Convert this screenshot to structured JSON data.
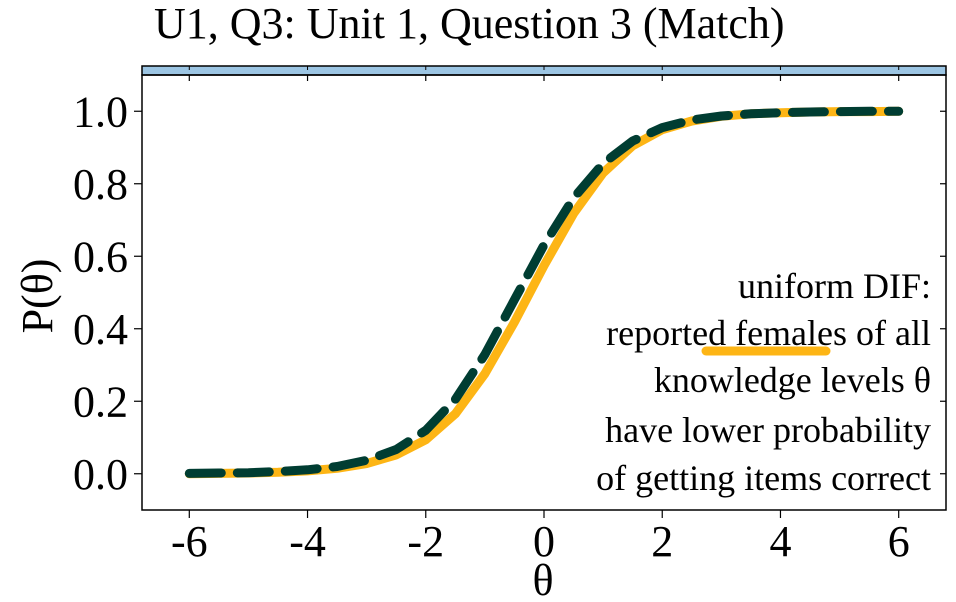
{
  "chart_data": {
    "type": "line",
    "title": "U1, Q3: Unit 1, Question 3 (Match)",
    "xlabel": "θ",
    "ylabel": "P(θ)",
    "xlim": [
      -6.8,
      6.8
    ],
    "ylim": [
      -0.1,
      1.1
    ],
    "x_ticks": [
      -6,
      -4,
      -2,
      0,
      2,
      4,
      6
    ],
    "x_tick_labels": [
      "-6",
      "-4",
      "-2",
      "0",
      "2",
      "4",
      "6"
    ],
    "y_ticks": [
      0.0,
      0.2,
      0.4,
      0.6,
      0.8,
      1.0
    ],
    "y_tick_labels": [
      "0.0",
      "0.2",
      "0.4",
      "0.6",
      "0.8",
      "1.0"
    ],
    "grid": false,
    "x": [
      -6,
      -5.5,
      -5,
      -4.5,
      -4,
      -3.5,
      -3,
      -2.5,
      -2,
      -1.5,
      -1,
      -0.5,
      0,
      0.5,
      1,
      1.5,
      2,
      2.5,
      3,
      3.5,
      4,
      4.5,
      5,
      5.5,
      6
    ],
    "series": [
      {
        "style": "solid",
        "color": "#FDB515",
        "values": [
          0.0,
          0.001,
          0.002,
          0.004,
          0.008,
          0.015,
          0.028,
          0.052,
          0.094,
          0.165,
          0.276,
          0.418,
          0.574,
          0.718,
          0.83,
          0.905,
          0.949,
          0.973,
          0.986,
          0.993,
          0.996,
          0.998,
          0.999,
          0.999,
          1.0
        ]
      },
      {
        "style": "dashed",
        "color": "#003D32",
        "values": [
          0.001,
          0.002,
          0.003,
          0.006,
          0.011,
          0.02,
          0.037,
          0.067,
          0.12,
          0.205,
          0.329,
          0.48,
          0.631,
          0.761,
          0.856,
          0.918,
          0.955,
          0.976,
          0.987,
          0.993,
          0.996,
          0.998,
          0.999,
          1.0,
          1.0
        ]
      }
    ],
    "annotation": {
      "lines": [
        "uniform DIF:",
        "reported females of all",
        "knowledge levels θ",
        "have lower probability",
        "of getting items correct"
      ],
      "underlined_word": "females",
      "underline_color": "#FDB515"
    },
    "strip_color": "#9CC5E3",
    "frame_color": "#000000"
  }
}
